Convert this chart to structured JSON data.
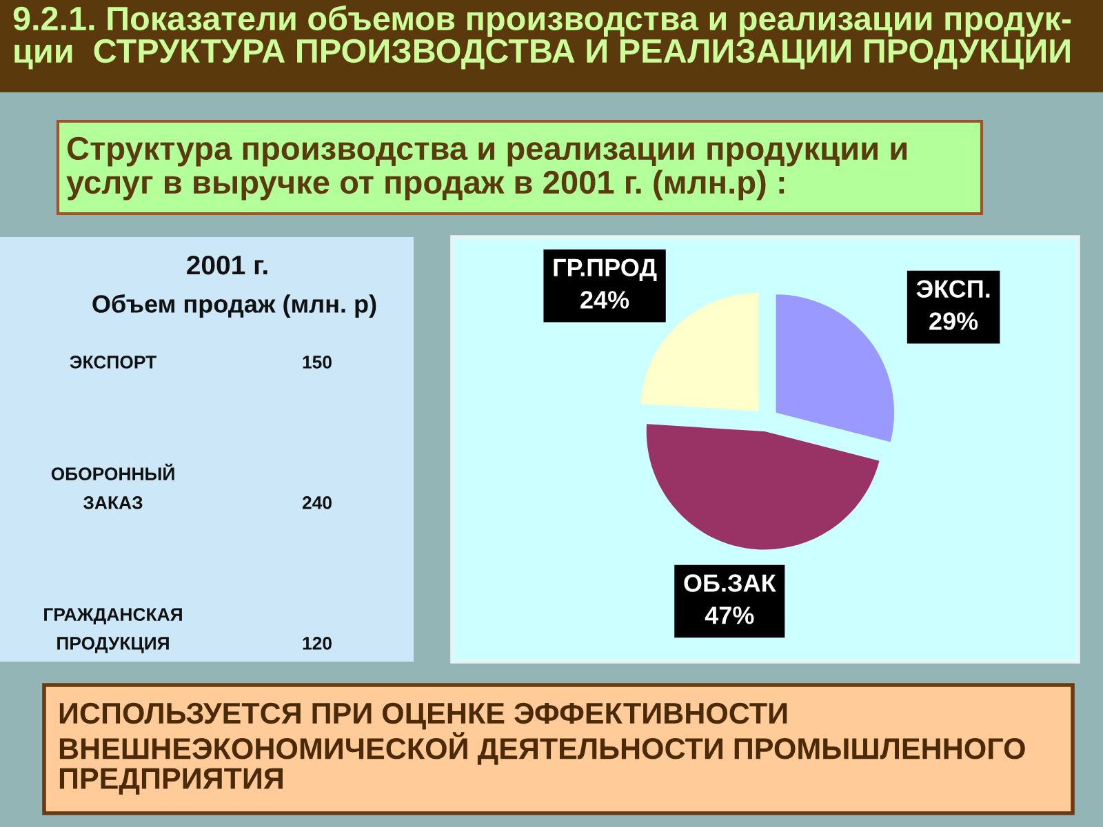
{
  "chart_data": [
    {
      "type": "other",
      "title": "2001 г.",
      "subtitle": "Объем продаж (млн. р)",
      "annotations": [
        "ЭКСПОРТ",
        "150",
        "ОБОРОННЫЙ\nЗАКАЗ",
        "240",
        "ГРАЖДАНСКАЯ\nПРОДУКЦИЯ",
        "120"
      ]
    },
    {
      "type": "pie",
      "title": "9.2.1. Показатели объемов производства и реализации продук-\nции  СТРУКТУРА ПРОИЗВОДСТВА И РЕАЛИЗАЦИИ ПРОДУКЦИИ",
      "subtitle": "Структура производства и реализации продукции и\nуслуг в выручке от продаж в 2001 г. (млн.р) :",
      "categories": [
        "ЭКСП.",
        "ОБ.ЗАК",
        "ГР.ПРОД"
      ],
      "values": [
        29,
        47,
        24
      ],
      "colors": [
        "#9999ff",
        "#993366",
        "#ffffcc"
      ],
      "value_labels": [
        "29%",
        "47%",
        "24%"
      ],
      "annotations": [
        "ИСПОЛЬЗУЕТСЯ ПРИ ОЦЕНКЕ ЭФФЕКТИВНОСТИ\nВНЕШНЕЭКОНОМИЧЕСКОЙ ДЕЯТЕЛЬНОСТИ ПРОМЫШЛЕННОГО\nПРЕДПРИЯТИЯ"
      ]
    }
  ]
}
